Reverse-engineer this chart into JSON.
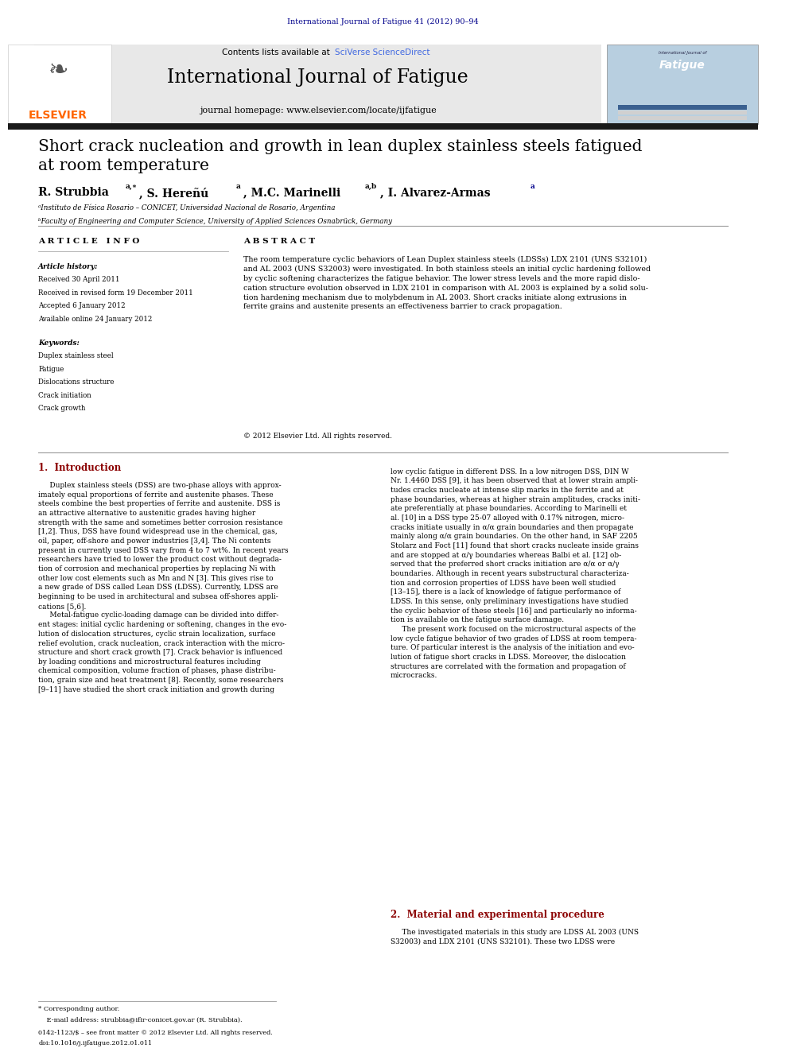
{
  "page_width": 9.92,
  "page_height": 13.23,
  "background_color": "#ffffff",
  "header_journal_ref": "International Journal of Fatigue 41 (2012) 90–94",
  "header_ref_color": "#00008B",
  "journal_name": "International Journal of Fatigue",
  "journal_homepage": "journal homepage: www.elsevier.com/locate/ijfatigue",
  "contents_text": "Contents lists available at ",
  "sciverse_text": "SciVerse ScienceDirect",
  "elsevier_color": "#FF6600",
  "elsevier_text": "ELSEVIER",
  "header_bg": "#E8E8E8",
  "dark_bar_color": "#1a1a1a",
  "title": "Short crack nucleation and growth in lean duplex stainless steels fatigued\nat room temperature",
  "affil_a": "ᵃInstituto de Física Rosario – CONICET, Universidad Nacional de Rosario, Argentina",
  "affil_b": "ᵇFaculty of Engineering and Computer Science, University of Applied Sciences Osnabrück, Germany",
  "article_info_label": "A R T I C L E   I N F O",
  "abstract_label": "A B S T R A C T",
  "article_history_label": "Article history:",
  "received1": "Received 30 April 2011",
  "received2": "Received in revised form 19 December 2011",
  "accepted": "Accepted 6 January 2012",
  "available": "Available online 24 January 2012",
  "keywords_label": "Keywords:",
  "keyword1": "Duplex stainless steel",
  "keyword2": "Fatigue",
  "keyword3": "Dislocations structure",
  "keyword4": "Crack initiation",
  "keyword5": "Crack growth",
  "abstract_text": "The room temperature cyclic behaviors of Lean Duplex stainless steels (LDSSs) LDX 2101 (UNS S32101)\nand AL 2003 (UNS S32003) were investigated. In both stainless steels an initial cyclic hardening followed\nby cyclic softening characterizes the fatigue behavior. The lower stress levels and the more rapid dislo-\ncation structure evolution observed in LDX 2101 in comparison with AL 2003 is explained by a solid solu-\ntion hardening mechanism due to molybdenum in AL 2003. Short cracks initiate along extrusions in\nferrite grains and austenite presents an effectiveness barrier to crack propagation.",
  "copyright": "© 2012 Elsevier Ltd. All rights reserved.",
  "section1_title": "1.  Introduction",
  "section1_col1": "     Duplex stainless steels (DSS) are two-phase alloys with approx-\nimately equal proportions of ferrite and austenite phases. These\nsteels combine the best properties of ferrite and austenite. DSS is\nan attractive alternative to austenitic grades having higher\nstrength with the same and sometimes better corrosion resistance\n[1,2]. Thus, DSS have found widespread use in the chemical, gas,\noil, paper, off-shore and power industries [3,4]. The Ni contents\npresent in currently used DSS vary from 4 to 7 wt%. In recent years\nresearchers have tried to lower the product cost without degrada-\ntion of corrosion and mechanical properties by replacing Ni with\nother low cost elements such as Mn and N [3]. This gives rise to\na new grade of DSS called Lean DSS (LDSS). Currently, LDSS are\nbeginning to be used in architectural and subsea off-shores appli-\ncations [5,6].\n     Metal-fatigue cyclic-loading damage can be divided into differ-\nent stages: initial cyclic hardening or softening, changes in the evo-\nlution of dislocation structures, cyclic strain localization, surface\nrelief evolution, crack nucleation, crack interaction with the micro-\nstructure and short crack growth [7]. Crack behavior is influenced\nby loading conditions and microstructural features including\nchemical composition, volume fraction of phases, phase distribu-\ntion, grain size and heat treatment [8]. Recently, some researchers\n[9–11] have studied the short crack initiation and growth during",
  "section1_col2": "low cyclic fatigue in different DSS. In a low nitrogen DSS, DIN W\nNr. 1.4460 DSS [9], it has been observed that at lower strain ampli-\ntudes cracks nucleate at intense slip marks in the ferrite and at\nphase boundaries, whereas at higher strain amplitudes, cracks initi-\nate preferentially at phase boundaries. According to Marinelli et\nal. [10] in a DSS type 25-07 alloyed with 0.17% nitrogen, micro-\ncracks initiate usually in α/α grain boundaries and then propagate\nmainly along α/α grain boundaries. On the other hand, in SAF 2205\nStolarz and Foct [11] found that short cracks nucleate inside grains\nand are stopped at α/γ boundaries whereas Balbi et al. [12] ob-\nserved that the preferred short cracks initiation are α/α or α/γ\nboundaries. Although in recent years substructural characteriza-\ntion and corrosion properties of LDSS have been well studied\n[13–15], there is a lack of knowledge of fatigue performance of\nLDSS. In this sense, only preliminary investigations have studied\nthe cyclic behavior of these steels [16] and particularly no informa-\ntion is available on the fatigue surface damage.\n     The present work focused on the microstructural aspects of the\nlow cycle fatigue behavior of two grades of LDSS at room tempera-\nture. Of particular interest is the analysis of the initiation and evo-\nlution of fatigue short cracks in LDSS. Moreover, the dislocation\nstructures are correlated with the formation and propagation of\nmicrocracks.",
  "section2_title": "2.  Material and experimental procedure",
  "section2_text": "     The investigated materials in this study are LDSS AL 2003 (UNS\nS32003) and LDX 2101 (UNS S32101). These two LDSS were",
  "footnote_star": "* Corresponding author.",
  "footnote_email": "    E-mail address: strubbia@ifir-conicet.gov.ar (R. Strubbia).",
  "footnote_issn": "0142-1123/$ – see front matter © 2012 Elsevier Ltd. All rights reserved.",
  "footnote_doi": "doi:10.1016/j.ijfatigue.2012.01.011"
}
